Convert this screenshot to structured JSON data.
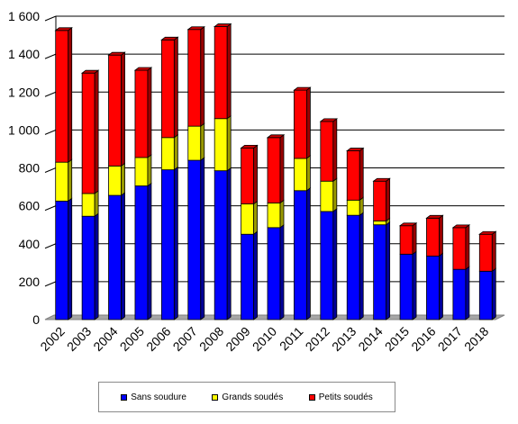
{
  "chart_data": {
    "type": "bar",
    "stacked": true,
    "grid": true,
    "legend_position": "bottom",
    "ylim": [
      0,
      1600
    ],
    "yticks": [
      "0",
      "200",
      "400",
      "600",
      "800",
      "1 000",
      "1 200",
      "1 400",
      "1 600"
    ],
    "ytick_values": [
      0,
      200,
      400,
      600,
      800,
      1000,
      1200,
      1400,
      1600
    ],
    "categories": [
      "2002",
      "2003",
      "2004",
      "2005",
      "2006",
      "2007",
      "2008",
      "2009",
      "2010",
      "2011",
      "2012",
      "2013",
      "2014",
      "2015",
      "2016",
      "2017",
      "2018"
    ],
    "series": [
      {
        "name": "Sans soudure",
        "color": "#0000ff",
        "values": [
          625,
          545,
          655,
          705,
          790,
          840,
          785,
          450,
          485,
          680,
          570,
          550,
          500,
          345,
          335,
          265,
          255
        ]
      },
      {
        "name": "Grands soudés",
        "color": "#ffff00",
        "values": [
          205,
          120,
          155,
          150,
          170,
          180,
          275,
          160,
          130,
          170,
          160,
          80,
          20,
          0,
          0,
          0,
          0
        ]
      },
      {
        "name": "Petits soudés",
        "color": "#ff0000",
        "values": [
          695,
          635,
          585,
          460,
          515,
          510,
          485,
          295,
          345,
          360,
          315,
          260,
          210,
          150,
          200,
          220,
          195
        ]
      }
    ]
  }
}
